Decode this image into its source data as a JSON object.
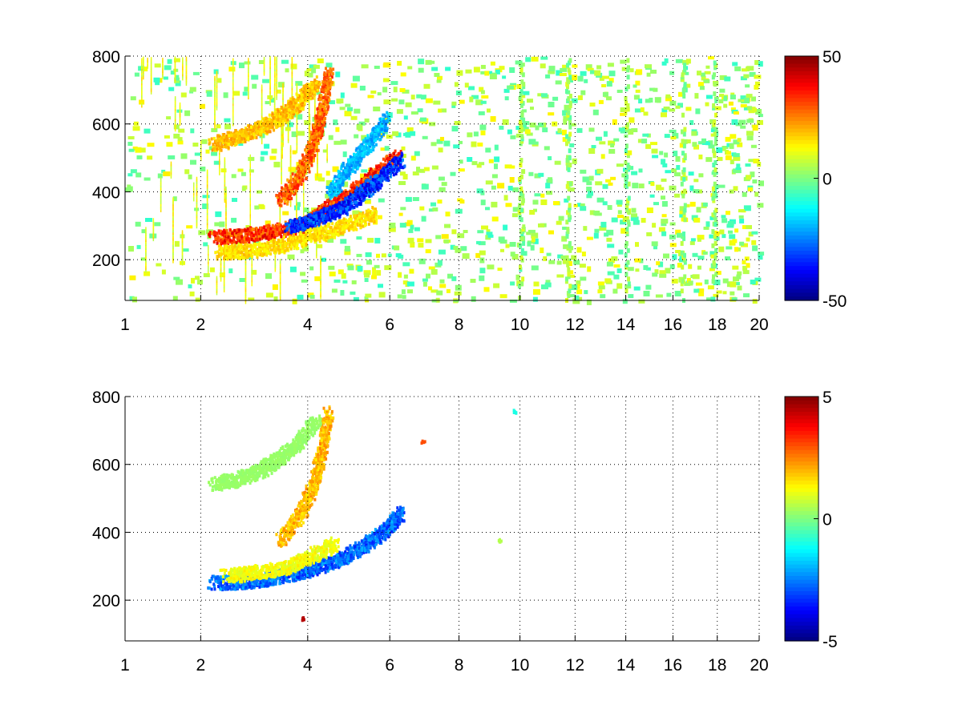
{
  "chart_data": [
    {
      "type": "heatmap",
      "panel": "top",
      "title": "",
      "xlabel": "",
      "ylabel": "",
      "xlim": [
        1,
        20
      ],
      "ylim": [
        80,
        800
      ],
      "x_scale": "sqrt",
      "xticks": [
        1,
        2,
        4,
        6,
        8,
        10,
        12,
        14,
        16,
        18,
        20
      ],
      "yticks": [
        200,
        400,
        600,
        800
      ],
      "grid": true,
      "colormap": "jet",
      "clim": [
        -50,
        50
      ],
      "colorbar_ticks": [
        50,
        0,
        -50
      ],
      "features": [
        {
          "name": "band",
          "x": [
            2.2,
            2.7,
            3.2,
            3.8,
            4.2,
            4.5,
            5.0,
            5.6,
            6.2
          ],
          "y": [
            270,
            275,
            285,
            305,
            330,
            360,
            400,
            455,
            510
          ],
          "value": 42
        },
        {
          "name": "band",
          "x": [
            3.4,
            3.8,
            4.1,
            4.3,
            4.45
          ],
          "y": [
            380,
            450,
            540,
            640,
            760
          ],
          "value": 36
        },
        {
          "name": "band",
          "x": [
            2.2,
            2.6,
            3.0,
            3.4,
            3.8,
            4.2
          ],
          "y": [
            545,
            565,
            590,
            625,
            670,
            730
          ],
          "value": 24
        },
        {
          "name": "band",
          "x": [
            3.6,
            4.1,
            4.7,
            5.2,
            5.7,
            6.3
          ],
          "y": [
            300,
            320,
            350,
            395,
            440,
            500
          ],
          "value": -42
        },
        {
          "name": "band",
          "x": [
            4.5,
            4.9,
            5.4,
            5.9
          ],
          "y": [
            400,
            470,
            540,
            620
          ],
          "value": -25
        },
        {
          "name": "band",
          "x": [
            2.3,
            2.8,
            3.4,
            4.0,
            4.8,
            5.6
          ],
          "y": [
            225,
            230,
            245,
            270,
            300,
            340
          ],
          "value": 20
        }
      ],
      "strong_columns_x": [
        10,
        11.7,
        14,
        16.4,
        17.8
      ]
    },
    {
      "type": "heatmap",
      "panel": "bottom",
      "title": "",
      "xlabel": "",
      "ylabel": "",
      "xlim": [
        1,
        20
      ],
      "ylim": [
        80,
        800
      ],
      "x_scale": "sqrt",
      "xticks": [
        1,
        2,
        4,
        6,
        8,
        10,
        12,
        14,
        16,
        18,
        20
      ],
      "yticks": [
        200,
        400,
        600,
        800
      ],
      "grid": true,
      "colormap": "jet",
      "clim": [
        -5,
        5
      ],
      "colorbar_ticks": [
        5,
        0,
        -5
      ],
      "features": [
        {
          "name": "band",
          "x": [
            2.2,
            2.7,
            3.2,
            3.8,
            4.3,
            4.8,
            5.4,
            5.9,
            6.3
          ],
          "y": [
            255,
            258,
            268,
            285,
            305,
            330,
            370,
            415,
            460
          ],
          "value": -3.5
        },
        {
          "name": "band",
          "x": [
            3.4,
            3.8,
            4.1,
            4.3,
            4.45
          ],
          "y": [
            380,
            450,
            540,
            640,
            760
          ],
          "value": 2.5
        },
        {
          "name": "band",
          "x": [
            2.2,
            2.6,
            3.0,
            3.4,
            3.8,
            4.2
          ],
          "y": [
            545,
            560,
            585,
            620,
            670,
            735
          ],
          "value": 0.3
        },
        {
          "name": "band",
          "x": [
            2.4,
            2.9,
            3.5,
            4.0,
            4.6
          ],
          "y": [
            275,
            285,
            300,
            330,
            370
          ],
          "value": 1.5
        }
      ],
      "spots": [
        {
          "x": 3.9,
          "y": 150,
          "value": 4.5
        },
        {
          "x": 9.3,
          "y": 378,
          "value": 0.5
        },
        {
          "x": 9.8,
          "y": 760,
          "value": -1
        },
        {
          "x": 6.9,
          "y": 670,
          "value": 3
        }
      ]
    }
  ]
}
